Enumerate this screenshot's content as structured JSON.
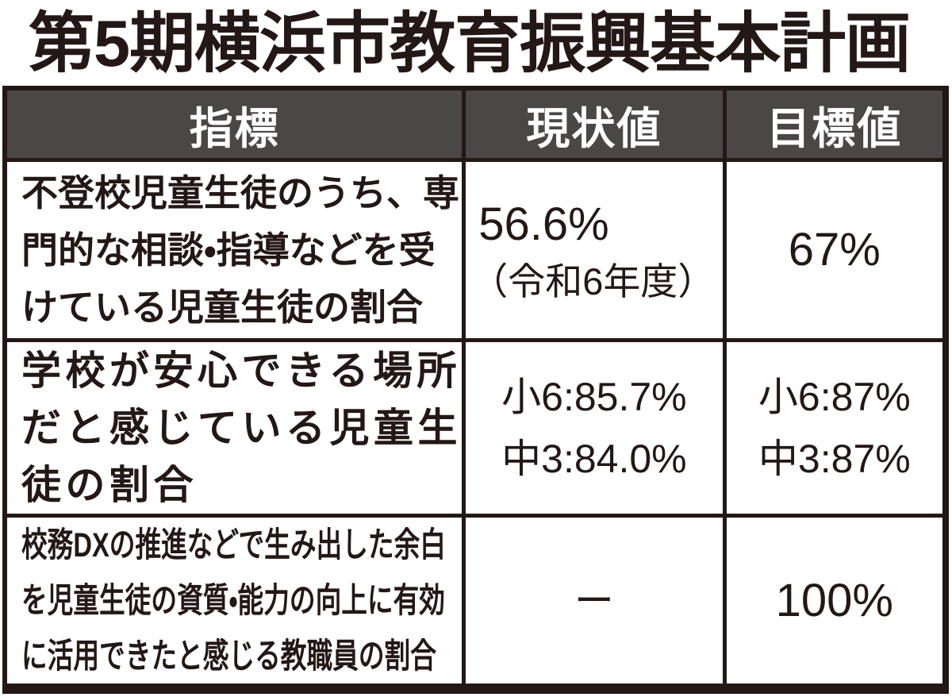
{
  "title": "第5期横浜市教育振興基本計画",
  "header": {
    "indicator": "指標",
    "current": "現状値",
    "target": "目標値"
  },
  "rows": [
    {
      "indicator_lines": [
        "不登校児童生徒のうち、専",
        "門的な相談・指導などを受",
        "けている児童生徒の割合"
      ],
      "current": [
        "56.6%",
        "（令和6年度）"
      ],
      "target": [
        "67%"
      ]
    },
    {
      "indicator_lines": [
        "学校が安心できる場所",
        "だと感じている児童生",
        "徒の割合"
      ],
      "current": [
        "小6:85.7%",
        "中3:84.0%"
      ],
      "target": [
        "小6:87%",
        "中3:87%"
      ]
    },
    {
      "indicator_lines": [
        "校務DXの推進などで生み出した余白",
        "を児童生徒の資質・能力の向上に有効",
        "に活用できたと感じる教職員の割合"
      ],
      "current": [
        "ー"
      ],
      "target": [
        "100%"
      ]
    }
  ],
  "colors": {
    "header_bg": "#4b4746",
    "border": "#231815",
    "text": "#231815",
    "header_text": "#ffffff",
    "background": "#ffffff"
  },
  "chart_data": {
    "type": "table",
    "title": "第5期横浜市教育振興基本計画",
    "columns": [
      "指標",
      "現状値",
      "目標値"
    ],
    "rows": [
      [
        "不登校児童生徒のうち、専門的な相談・指導などを受けている児童生徒の割合",
        "56.6%（令和6年度）",
        "67%"
      ],
      [
        "学校が安心できる場所だと感じている児童生徒の割合",
        "小6:85.7% 中3:84.0%",
        "小6:87% 中3:87%"
      ],
      [
        "校務DXの推進などで生み出した余白を児童生徒の資質・能力の向上に有効に活用できたと感じる教職員の割合",
        "ー",
        "100%"
      ]
    ]
  }
}
